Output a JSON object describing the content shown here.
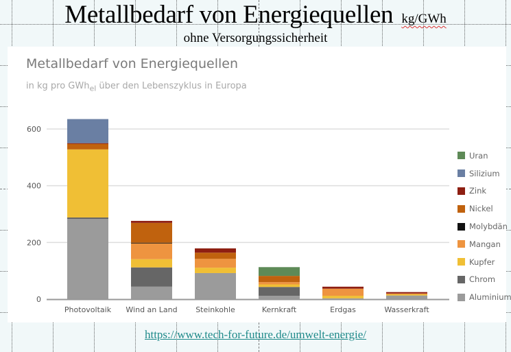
{
  "slide": {
    "title": "Metallbedarf von Energiequellen",
    "title_unit": "kg/GWh",
    "subtitle": "ohne Versorgungssicherheit",
    "link": "https://www.tech-for-future.de/umwelt-energie/"
  },
  "chart_data": {
    "type": "bar",
    "stacked": true,
    "title": "Metallbedarf von Energiequellen",
    "subtitle_pre": "in kg pro GWh",
    "subtitle_sub": "el",
    "subtitle_post": " über den Lebenszyklus in Europa",
    "xlabel": "",
    "ylabel": "",
    "ylim": [
      0,
      650
    ],
    "yticks": [
      0,
      200,
      400,
      600
    ],
    "grid": true,
    "legend_position": "right",
    "categories": [
      "Photovoltaik",
      "Wind an Land",
      "Steinkohle",
      "Kernkraft",
      "Erdgas",
      "Wasserkraft"
    ],
    "series": [
      {
        "name": "Aluminium",
        "color": "#9b9b9b",
        "values": [
          283,
          44,
          92,
          12,
          3,
          13
        ]
      },
      {
        "name": "Chrom",
        "color": "#666666",
        "values": [
          5,
          68,
          0,
          31,
          0,
          0
        ]
      },
      {
        "name": "Kupfer",
        "color": "#f0bf35",
        "values": [
          240,
          29,
          19,
          9,
          9,
          4
        ]
      },
      {
        "name": "Mangan",
        "color": "#ee9440",
        "values": [
          0,
          56,
          31,
          8,
          25,
          3
        ]
      },
      {
        "name": "Molybdän",
        "color": "#111111",
        "values": [
          0,
          2,
          0,
          0,
          0,
          0
        ]
      },
      {
        "name": "Nickel",
        "color": "#c0620e",
        "values": [
          20,
          70,
          22,
          22,
          0,
          0
        ]
      },
      {
        "name": "Zink",
        "color": "#8e1f12",
        "values": [
          2,
          7,
          15,
          0,
          7,
          5
        ]
      },
      {
        "name": "Silizium",
        "color": "#6a7fa3",
        "values": [
          85,
          0,
          0,
          0,
          0,
          0
        ]
      },
      {
        "name": "Uran",
        "color": "#5e8a57",
        "values": [
          0,
          0,
          0,
          31,
          0,
          0
        ]
      }
    ],
    "legend_order": [
      "Uran",
      "Silizium",
      "Zink",
      "Nickel",
      "Molybdän",
      "Mangan",
      "Kupfer",
      "Chrom",
      "Aluminium"
    ]
  }
}
